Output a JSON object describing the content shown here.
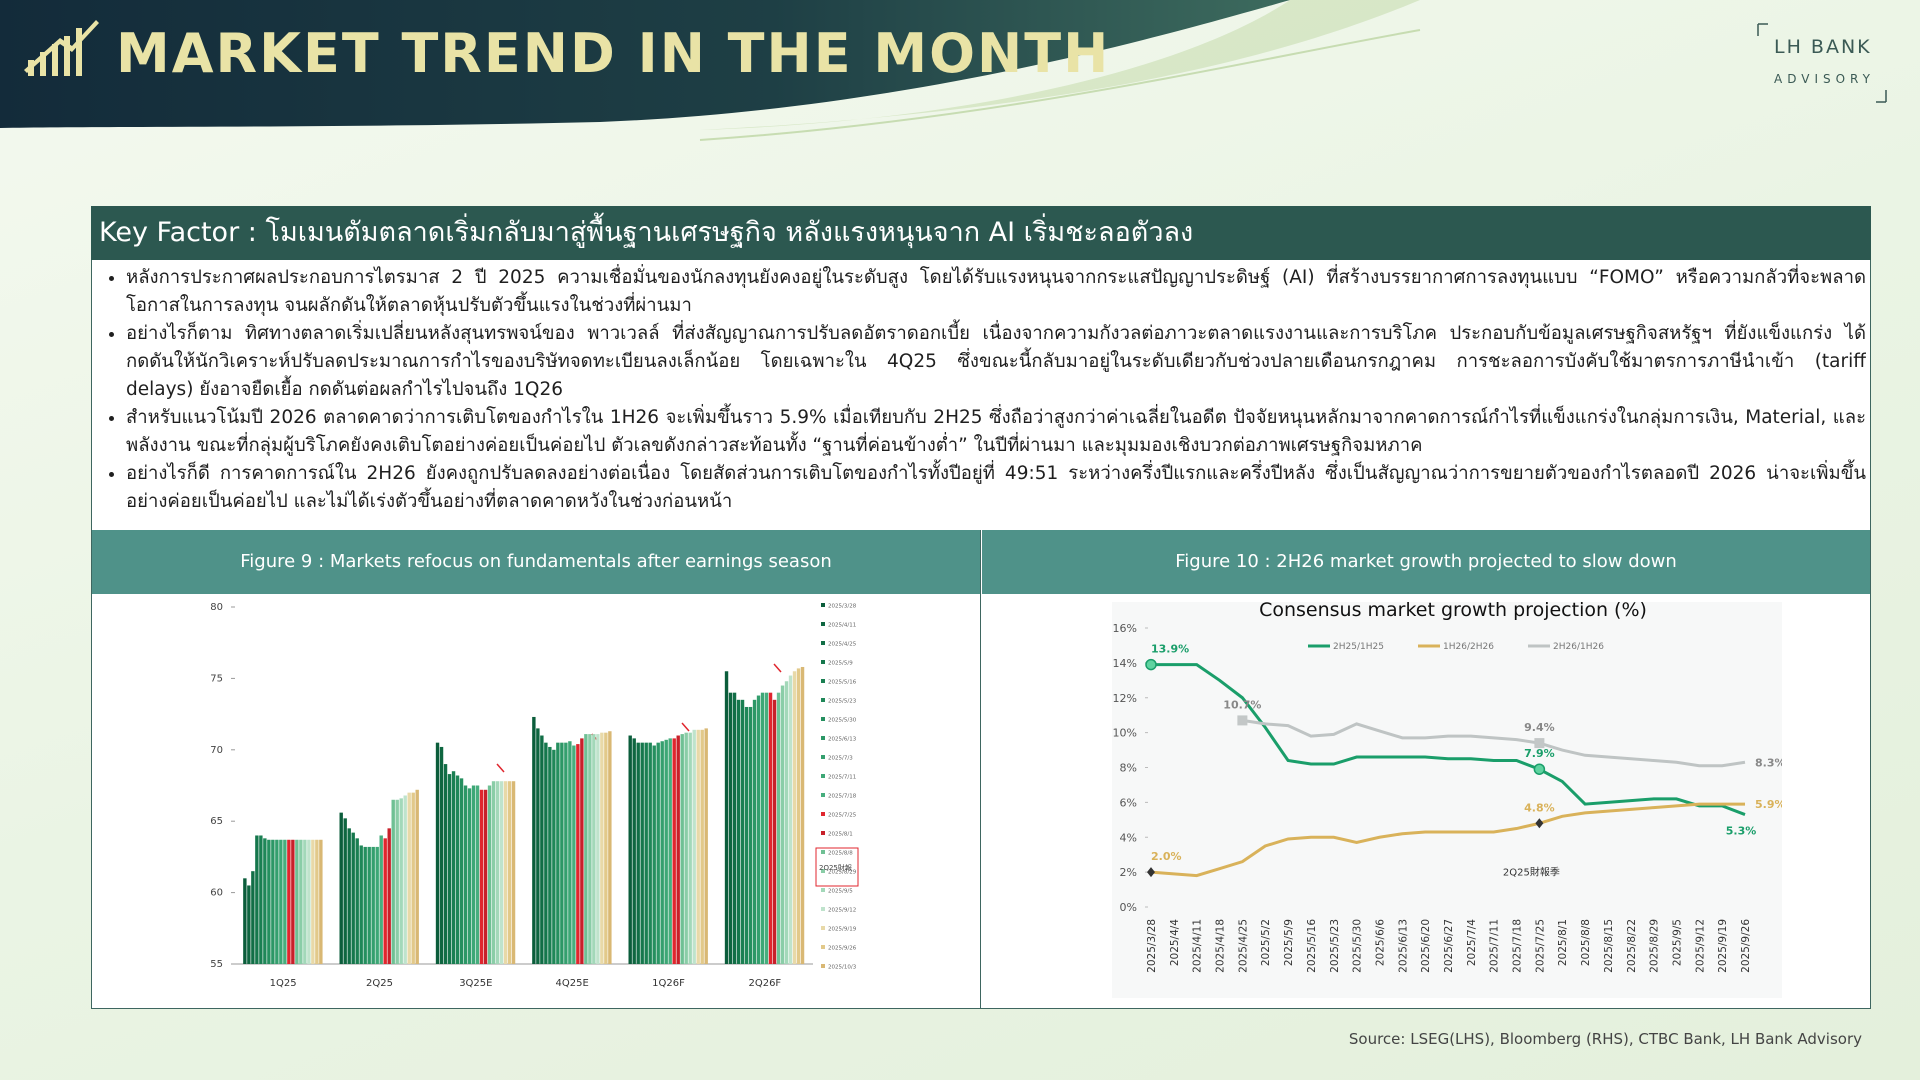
{
  "header": {
    "title": "MARKET TREND IN THE MONTH",
    "brand": "LH BANK",
    "brand_sub": "ADVISORY"
  },
  "key_factor": {
    "title": "Key Factor : โมเมนตัมตลาดเริ่มกลับมาสู่พื้นฐานเศรษฐกิจ หลังแรงหนุนจาก AI เริ่มชะลอตัวลง",
    "bullets": [
      "หลังการประกาศผลประกอบการไตรมาส 2 ปี 2025 ความเชื่อมั่นของนักลงทุนยังคงอยู่ในระดับสูง โดยได้รับแรงหนุนจากกระแสปัญญาประดิษฐ์ (AI) ที่สร้างบรรยากาศการลงทุนแบบ “FOMO” หรือความกลัวที่จะพลาดโอกาสในการลงทุน จนผลักดันให้ตลาดหุ้นปรับตัวขึ้นแรงในช่วงที่ผ่านมา",
      "อย่างไรก็ตาม ทิศทางตลาดเริ่มเปลี่ยนหลังสุนทรพจน์ของ พาวเวลล์ ที่ส่งสัญญาณการปรับลดอัตราดอกเบี้ย เนื่องจากความกังวลต่อภาวะตลาดแรงงานและการบริโภค ประกอบกับข้อมูลเศรษฐกิจสหรัฐฯ ที่ยังแข็งแกร่ง ได้กดดันให้นักวิเคราะห์ปรับลดประมาณการกำไรของบริษัทจดทะเบียนลงเล็กน้อย โดยเฉพาะใน 4Q25 ซึ่งขณะนี้กลับมาอยู่ในระดับเดียวกับช่วงปลายเดือนกรกฎาคม การชะลอการบังคับใช้มาตรการภาษีนำเข้า (tariff delays) ยังอาจยืดเยื้อ กดดันต่อผลกำไรไปจนถึง 1Q26",
      "สำหรับแนวโน้มปี 2026 ตลาดคาดว่าการเติบโตของกำไรใน 1H26 จะเพิ่มขึ้นราว 5.9% เมื่อเทียบกับ 2H25 ซึ่งถือว่าสูงกว่าค่าเฉลี่ยในอดีต ปัจจัยหนุนหลักมาจากคาดการณ์กำไรที่แข็งแกร่งในกลุ่มการเงิน, Material, และพลังงาน ขณะที่กลุ่มผู้บริโภคยังคงเติบโตอย่างค่อยเป็นค่อยไป ตัวเลขดังกล่าวสะท้อนทั้ง “ฐานที่ค่อนข้างต่ำ” ในปีที่ผ่านมา และมุมมองเชิงบวกต่อภาพเศรษฐกิจมหภาค",
      "อย่างไรก็ดี การคาดการณ์ใน 2H26 ยังคงถูกปรับลดลงอย่างต่อเนื่อง โดยสัดส่วนการเติบโตของกำไรทั้งปีอยู่ที่ 49:51 ระหว่างครึ่งปีแรกและครึ่งปีหลัง ซึ่งเป็นสัญญาณว่าการขยายตัวของกำไรตลอดปี 2026 น่าจะเพิ่มขึ้นอย่างค่อยเป็นค่อยไป และไม่ได้เร่งตัวขึ้นอย่างที่ตลาดคาดหวังในช่วงก่อนหน้า"
    ]
  },
  "figures": [
    {
      "caption": "Figure 9 : Markets refocus on fundamentals after earnings season"
    },
    {
      "caption": "Figure 10 : 2H26 market growth projected to slow down"
    }
  ],
  "chart_data": [
    {
      "type": "bar",
      "categories": [
        "1Q25",
        "2Q25",
        "3Q25E",
        "4Q25E",
        "1Q26F",
        "2Q26F"
      ],
      "ylim": [
        55,
        80
      ],
      "yticks": [
        55,
        60,
        65,
        70,
        75,
        80
      ],
      "annotation": "2Q25財報",
      "series": [
        {
          "name": "2025/3/28",
          "color": "#0b5d3b",
          "values": [
            61,
            65.6,
            70.5,
            72.3,
            71,
            75.5
          ]
        },
        {
          "name": "2025/4/11",
          "color": "#0e6640",
          "values": [
            60.5,
            65.2,
            70.2,
            71.5,
            70.8,
            74
          ]
        },
        {
          "name": "2025/4/25",
          "color": "#116e46",
          "values": [
            61.5,
            64.5,
            69,
            71,
            70.5,
            74
          ]
        },
        {
          "name": "2025/5/9",
          "color": "#15774c",
          "values": [
            64,
            64.2,
            68.3,
            70.5,
            70.5,
            73.5
          ]
        },
        {
          "name": "2025/5/16",
          "color": "#1a7f52",
          "values": [
            64,
            63.8,
            68.5,
            70.2,
            70.5,
            73.5
          ]
        },
        {
          "name": "2025/5/23",
          "color": "#1f8758",
          "values": [
            63.8,
            63.3,
            68.2,
            70,
            70.5,
            73
          ]
        },
        {
          "name": "2025/5/30",
          "color": "#258f5f",
          "values": [
            63.7,
            63.2,
            68,
            70.5,
            70.3,
            73
          ]
        },
        {
          "name": "2025/6/13",
          "color": "#2c9766",
          "values": [
            63.7,
            63.2,
            67.5,
            70.5,
            70.5,
            73.5
          ]
        },
        {
          "name": "2025/7/3",
          "color": "#349f6e",
          "values": [
            63.7,
            63.2,
            67.3,
            70.5,
            70.6,
            73.8
          ]
        },
        {
          "name": "2025/7/11",
          "color": "#3da776",
          "values": [
            63.7,
            63.2,
            67.5,
            70.6,
            70.7,
            74
          ]
        },
        {
          "name": "2025/7/18",
          "color": "#47ae7e",
          "values": [
            63.7,
            64,
            67.5,
            70.3,
            70.8,
            74
          ]
        },
        {
          "name": "2025/7/25",
          "color": "#e0262e",
          "values": [
            63.7,
            63.8,
            67.2,
            70.4,
            70.8,
            74
          ]
        },
        {
          "name": "2025/8/1",
          "color": "#c8202a",
          "values": [
            63.7,
            64.5,
            67.2,
            70.8,
            71,
            73.5
          ]
        },
        {
          "name": "2025/8/8",
          "color": "#6fc094",
          "values": [
            63.7,
            66.5,
            67.5,
            71.1,
            71.1,
            74
          ]
        },
        {
          "name": "2025/8/29",
          "color": "#8acda7",
          "values": [
            63.7,
            66.5,
            67.8,
            71.1,
            71.2,
            74.5
          ]
        },
        {
          "name": "2025/9/5",
          "color": "#a3d8b9",
          "values": [
            63.7,
            66.6,
            67.8,
            71.1,
            71.2,
            74.8
          ]
        },
        {
          "name": "2025/9/12",
          "color": "#bfe3cc",
          "values": [
            63.7,
            66.8,
            67.8,
            71.1,
            71.4,
            75.2
          ]
        },
        {
          "name": "2025/9/19",
          "color": "#e8d9a8",
          "values": [
            63.7,
            67,
            67.8,
            71.2,
            71.4,
            75.5
          ]
        },
        {
          "name": "2025/9/26",
          "color": "#e2c98a",
          "values": [
            63.7,
            67,
            67.8,
            71.2,
            71.4,
            75.7
          ]
        },
        {
          "name": "2025/10/3",
          "color": "#d9b874",
          "values": [
            63.7,
            67.2,
            67.8,
            71.3,
            71.5,
            75.8
          ]
        }
      ]
    },
    {
      "type": "line",
      "title": "Consensus market growth projection (%)",
      "annotation": "2Q25財報季",
      "x": [
        "2025/3/28",
        "2025/4/4",
        "2025/4/11",
        "2025/4/18",
        "2025/4/25",
        "2025/5/2",
        "2025/5/9",
        "2025/5/16",
        "2025/5/23",
        "2025/5/30",
        "2025/6/6",
        "2025/6/13",
        "2025/6/20",
        "2025/6/27",
        "2025/7/4",
        "2025/7/11",
        "2025/7/18",
        "2025/7/25",
        "2025/8/1",
        "2025/8/8",
        "2025/8/15",
        "2025/8/22",
        "2025/8/29",
        "2025/9/5",
        "2025/9/12",
        "2025/9/19",
        "2025/9/26"
      ],
      "ylim": [
        0,
        16
      ],
      "yticks": [
        {
          "value": 0,
          "label": "0%"
        },
        {
          "value": 2,
          "label": "2%"
        },
        {
          "value": 4,
          "label": "4%"
        },
        {
          "value": 6,
          "label": "6%"
        },
        {
          "value": 8,
          "label": "8%"
        },
        {
          "value": 10,
          "label": "10%"
        },
        {
          "value": 12,
          "label": "12%"
        },
        {
          "value": 14,
          "label": "14%"
        },
        {
          "value": 16,
          "label": "16%"
        }
      ],
      "series": [
        {
          "name": "2H25/1H25",
          "color": "#1a9e6a",
          "values": [
            13.9,
            13.9,
            13.9,
            13,
            12,
            10.3,
            8.4,
            8.2,
            8.2,
            8.6,
            8.6,
            8.6,
            8.6,
            8.5,
            8.5,
            8.4,
            8.4,
            7.9,
            7.2,
            5.9,
            6,
            6.1,
            6.2,
            6.2,
            5.8,
            5.8,
            5.3
          ],
          "value_labels": [
            "13.9%",
            null,
            null,
            null,
            null,
            null,
            null,
            null,
            null,
            null,
            null,
            null,
            null,
            null,
            null,
            null,
            null,
            "7.9%",
            null,
            null,
            null,
            null,
            null,
            null,
            null,
            null,
            "5.3%"
          ]
        },
        {
          "name": "1H26/2H26",
          "color": "#d9b25a",
          "values": [
            2.0,
            1.9,
            1.8,
            2.2,
            2.6,
            3.5,
            3.9,
            4.0,
            4.0,
            3.7,
            4.0,
            4.2,
            4.3,
            4.3,
            4.3,
            4.3,
            4.5,
            4.8,
            5.2,
            5.4,
            5.5,
            5.6,
            5.7,
            5.8,
            5.9,
            5.9,
            5.9
          ],
          "value_labels": [
            "2.0%",
            null,
            null,
            null,
            null,
            null,
            null,
            null,
            null,
            null,
            null,
            null,
            null,
            null,
            null,
            null,
            null,
            "4.8%",
            null,
            null,
            null,
            null,
            null,
            null,
            null,
            null,
            "5.9%"
          ]
        },
        {
          "name": "2H26/1H26",
          "color": "#bfc4c4",
          "values": [
            null,
            null,
            null,
            null,
            10.7,
            10.5,
            10.4,
            9.8,
            9.9,
            10.5,
            10.1,
            9.7,
            9.7,
            9.8,
            9.8,
            9.7,
            9.6,
            9.4,
            9.0,
            8.7,
            8.6,
            8.5,
            8.4,
            8.3,
            8.1,
            8.1,
            8.3
          ],
          "value_labels": [
            null,
            null,
            null,
            null,
            "10.7%",
            null,
            null,
            null,
            null,
            null,
            null,
            null,
            null,
            null,
            null,
            null,
            null,
            "9.4%",
            null,
            null,
            null,
            null,
            null,
            null,
            null,
            null,
            "8.3%"
          ]
        }
      ]
    }
  ],
  "source": "Source: LSEG(LHS), Bloomberg (RHS), CTBC Bank, LH Bank Advisory"
}
